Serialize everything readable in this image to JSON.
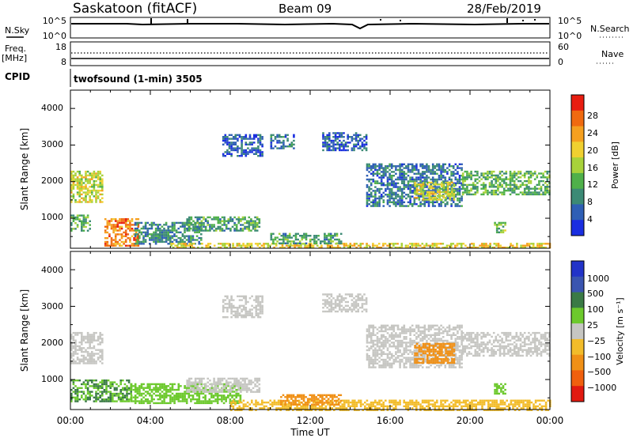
{
  "header": {
    "station": "Saskatoon (fitACF)",
    "beam": "Beam 09",
    "date": "28/Feb/2019"
  },
  "nsky": {
    "label": "N.Sky",
    "ticks": [
      "10^5",
      "10^0"
    ]
  },
  "nsearch": {
    "label": "N.Search",
    "ticks": [
      "10^5",
      "10^0"
    ]
  },
  "freq": {
    "label_top": "Freq.",
    "label_unit": "[MHz]",
    "ticks": [
      "18",
      "8"
    ]
  },
  "nave": {
    "label": "Nave",
    "ticks": [
      "60",
      "0"
    ]
  },
  "cpid": {
    "label": "CPID",
    "value": "twofsound (1-min) 3505"
  },
  "power_panel": {
    "ylabel": "Slant Range [km]",
    "yticks": [
      "4000",
      "3000",
      "2000",
      "1000"
    ],
    "cbar_label": "Power [dB]",
    "cbar_ticks": [
      "28",
      "24",
      "20",
      "16",
      "12",
      "8",
      "4"
    ]
  },
  "velocity_panel": {
    "ylabel": "Slant Range [km]",
    "yticks": [
      "4000",
      "3000",
      "2000",
      "1000"
    ],
    "cbar_label": "Velocity [m s⁻¹]",
    "cbar_ticks": [
      "1000",
      "500",
      "100",
      "25",
      "−25",
      "−100",
      "−500",
      "−1000"
    ]
  },
  "xaxis": {
    "label": "Time UT",
    "ticks": [
      "00:00",
      "04:00",
      "08:00",
      "12:00",
      "16:00",
      "20:00",
      "00:00"
    ]
  },
  "colors": {
    "power": [
      "#1a2ee0",
      "#2f5fb5",
      "#3c8a75",
      "#4fb04a",
      "#a8d23a",
      "#f0d030",
      "#f5a020",
      "#f06a10",
      "#e81d10"
    ],
    "velocity": [
      "#2233c8",
      "#3a55b0",
      "#3a7a45",
      "#6cc92c",
      "#c6c6c2",
      "#f2bc2a",
      "#f09016",
      "#f0600e",
      "#e11a10"
    ]
  },
  "chart_data": {
    "type": "heatmap",
    "x_range_hours": [
      0,
      24
    ],
    "y_range_km": [
      180,
      4500
    ],
    "power_regions": [
      {
        "t0": 0.0,
        "t1": 1.6,
        "r0": 1450,
        "r1": 2300,
        "db": 20
      },
      {
        "t0": 0.0,
        "t1": 1.0,
        "r0": 650,
        "r1": 1100,
        "db": 14
      },
      {
        "t0": 1.7,
        "t1": 3.4,
        "r0": 250,
        "r1": 1000,
        "db": 28
      },
      {
        "t0": 3.2,
        "t1": 6.5,
        "r0": 300,
        "r1": 900,
        "db": 10
      },
      {
        "t0": 5.8,
        "t1": 9.5,
        "r0": 650,
        "r1": 1050,
        "db": 12
      },
      {
        "t0": 7.6,
        "t1": 9.6,
        "r0": 2700,
        "r1": 3300,
        "db": 6
      },
      {
        "t0": 10.0,
        "t1": 11.2,
        "r0": 2900,
        "r1": 3300,
        "db": 8
      },
      {
        "t0": 12.6,
        "t1": 14.8,
        "r0": 2850,
        "r1": 3350,
        "db": 6
      },
      {
        "t0": 14.8,
        "t1": 19.6,
        "r0": 1350,
        "r1": 2500,
        "db": 8
      },
      {
        "t0": 17.2,
        "t1": 19.2,
        "r0": 1500,
        "r1": 2000,
        "db": 20
      },
      {
        "t0": 19.6,
        "t1": 24.0,
        "r0": 1650,
        "r1": 2300,
        "db": 14
      },
      {
        "t0": 21.2,
        "t1": 21.8,
        "r0": 600,
        "r1": 900,
        "db": 16
      },
      {
        "t0": 5.0,
        "t1": 24.0,
        "r0": 180,
        "r1": 330,
        "db": 22
      },
      {
        "t0": 10.0,
        "t1": 13.6,
        "r0": 330,
        "r1": 600,
        "db": 12
      }
    ],
    "velocity_regions": [
      {
        "t0": 0.0,
        "t1": 1.6,
        "r0": 1450,
        "r1": 2300,
        "v": 0
      },
      {
        "t0": 0.0,
        "t1": 3.0,
        "r0": 400,
        "r1": 1000,
        "v": 100
      },
      {
        "t0": 3.0,
        "t1": 8.5,
        "r0": 350,
        "r1": 900,
        "v": 60
      },
      {
        "t0": 5.8,
        "t1": 9.5,
        "r0": 650,
        "r1": 1050,
        "v": 0
      },
      {
        "t0": 7.6,
        "t1": 9.6,
        "r0": 2700,
        "r1": 3300,
        "v": 0
      },
      {
        "t0": 12.6,
        "t1": 14.8,
        "r0": 2850,
        "r1": 3350,
        "v": 0
      },
      {
        "t0": 14.8,
        "t1": 19.6,
        "r0": 1350,
        "r1": 2500,
        "v": 0
      },
      {
        "t0": 17.2,
        "t1": 19.2,
        "r0": 1450,
        "r1": 2000,
        "v": -400
      },
      {
        "t0": 19.6,
        "t1": 24.0,
        "r0": 1650,
        "r1": 2300,
        "v": 0
      },
      {
        "t0": 21.2,
        "t1": 21.8,
        "r0": 600,
        "r1": 900,
        "v": 80
      },
      {
        "t0": 8.0,
        "t1": 24.0,
        "r0": 180,
        "r1": 450,
        "v": -60
      },
      {
        "t0": 10.5,
        "t1": 13.5,
        "r0": 300,
        "r1": 600,
        "v": -150
      }
    ]
  }
}
